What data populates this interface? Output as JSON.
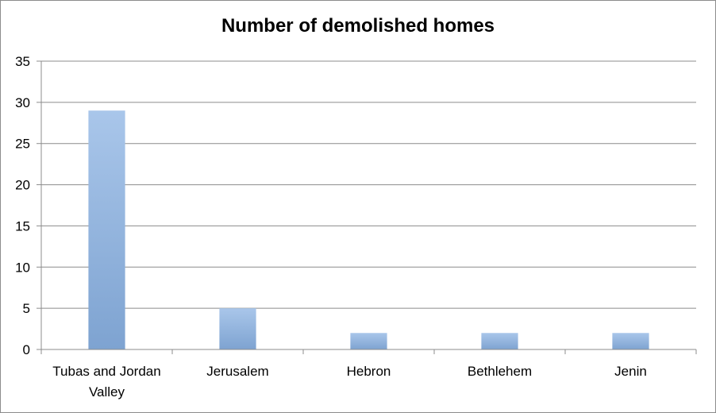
{
  "chart_data": {
    "type": "bar",
    "title": "Number of demolished homes",
    "categories": [
      "Tubas and Jordan Valley",
      "Jerusalem",
      "Hebron",
      "Bethlehem",
      "Jenin"
    ],
    "category_lines": [
      [
        "Tubas and Jordan",
        "Valley"
      ],
      [
        "Jerusalem"
      ],
      [
        "Hebron"
      ],
      [
        "Bethlehem"
      ],
      [
        "Jenin"
      ]
    ],
    "values": [
      29,
      5,
      2,
      2,
      2
    ],
    "xlabel": "",
    "ylabel": "",
    "ylim": [
      0,
      35
    ],
    "yticks": [
      0,
      5,
      10,
      15,
      20,
      25,
      30,
      35
    ],
    "grid": true,
    "legend": "none",
    "colors": {
      "bar_top": "#a9c6ea",
      "bar_bottom": "#7ea3d1",
      "grid": "#8c8c8c",
      "axis": "#8c8c8c"
    }
  }
}
